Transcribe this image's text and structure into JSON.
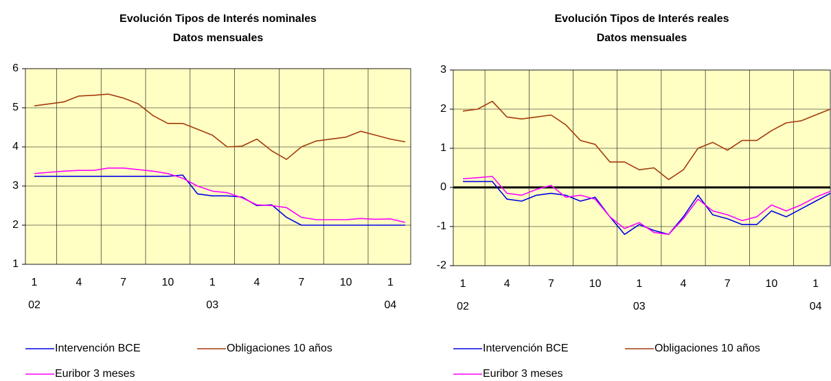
{
  "chart_data": [
    {
      "type": "line",
      "title": "Evolución Tipos de Interés nominales",
      "subtitle": "Datos mensuales",
      "categories": [
        "1",
        null,
        null,
        "4",
        null,
        null,
        "7",
        null,
        null,
        "10",
        null,
        null,
        "1",
        null,
        null,
        "4",
        null,
        null,
        "7",
        null,
        null,
        "10",
        null,
        null,
        "1",
        null
      ],
      "year_labels": [
        "02",
        null,
        null,
        null,
        null,
        null,
        null,
        null,
        null,
        null,
        null,
        null,
        "03",
        null,
        null,
        null,
        null,
        null,
        null,
        null,
        null,
        null,
        null,
        null,
        "04",
        null
      ],
      "ylim": [
        1,
        6
      ],
      "yticks": [
        1,
        2,
        3,
        4,
        5,
        6
      ],
      "grid": true,
      "zero_line": false,
      "series": [
        {
          "name": "Intervención BCE",
          "color": "#0000e6",
          "values": [
            3.25,
            3.25,
            3.25,
            3.25,
            3.25,
            3.25,
            3.25,
            3.25,
            3.25,
            3.25,
            3.28,
            2.8,
            2.75,
            2.75,
            2.72,
            2.5,
            2.52,
            2.2,
            2.0,
            2.0,
            2.0,
            2.0,
            2.0,
            2.0,
            2.0,
            2.0
          ]
        },
        {
          "name": "Obligaciones 10 años",
          "color": "#a33a0a",
          "values": [
            5.05,
            5.1,
            5.15,
            5.3,
            5.32,
            5.35,
            5.25,
            5.1,
            4.8,
            4.6,
            4.6,
            4.45,
            4.3,
            4.0,
            4.02,
            4.2,
            3.9,
            3.68,
            4.0,
            4.15,
            4.2,
            4.25,
            4.4,
            4.3,
            4.2,
            4.13
          ]
        },
        {
          "name": "Euribor 3 meses",
          "color": "#ff00ff",
          "values": [
            3.32,
            3.35,
            3.38,
            3.4,
            3.4,
            3.46,
            3.46,
            3.42,
            3.38,
            3.32,
            3.2,
            3.0,
            2.87,
            2.83,
            2.7,
            2.52,
            2.5,
            2.45,
            2.2,
            2.14,
            2.14,
            2.14,
            2.17,
            2.15,
            2.16,
            2.07
          ]
        }
      ]
    },
    {
      "type": "line",
      "title": "Evolución Tipos de Interés reales",
      "subtitle": "Datos mensuales",
      "categories": [
        "1",
        null,
        null,
        "4",
        null,
        null,
        "7",
        null,
        null,
        "10",
        null,
        null,
        "1",
        null,
        null,
        "4",
        null,
        null,
        "7",
        null,
        null,
        "10",
        null,
        null,
        "1",
        null
      ],
      "year_labels": [
        "02",
        null,
        null,
        null,
        null,
        null,
        null,
        null,
        null,
        null,
        null,
        null,
        "03",
        null,
        null,
        null,
        null,
        null,
        null,
        null,
        null,
        null,
        null,
        null,
        "04",
        null
      ],
      "ylim": [
        -2,
        3
      ],
      "yticks": [
        -2,
        -1,
        0,
        1,
        2,
        3
      ],
      "grid": true,
      "zero_line": true,
      "series": [
        {
          "name": "Intervención BCE",
          "color": "#0000e6",
          "values": [
            0.15,
            0.15,
            0.15,
            -0.3,
            -0.35,
            -0.2,
            -0.15,
            -0.2,
            -0.35,
            -0.25,
            -0.75,
            -1.2,
            -0.95,
            -1.1,
            -1.2,
            -0.75,
            -0.2,
            -0.7,
            -0.8,
            -0.95,
            -0.95,
            -0.6,
            -0.75,
            -0.55,
            -0.35,
            -0.15
          ]
        },
        {
          "name": "Obligaciones 10 años",
          "color": "#a33a0a",
          "values": [
            1.95,
            2.0,
            2.2,
            1.8,
            1.75,
            1.8,
            1.85,
            1.6,
            1.2,
            1.1,
            0.65,
            0.65,
            0.45,
            0.5,
            0.2,
            0.45,
            1.0,
            1.15,
            0.95,
            1.2,
            1.2,
            1.45,
            1.65,
            1.7,
            1.85,
            2.0
          ]
        },
        {
          "name": "Euribor 3 meses",
          "color": "#ff00ff",
          "values": [
            0.22,
            0.25,
            0.28,
            -0.15,
            -0.2,
            -0.05,
            0.05,
            -0.25,
            -0.2,
            -0.3,
            -0.75,
            -1.05,
            -0.9,
            -1.15,
            -1.2,
            -0.8,
            -0.3,
            -0.6,
            -0.7,
            -0.85,
            -0.75,
            -0.45,
            -0.6,
            -0.45,
            -0.25,
            -0.1
          ]
        }
      ]
    }
  ]
}
